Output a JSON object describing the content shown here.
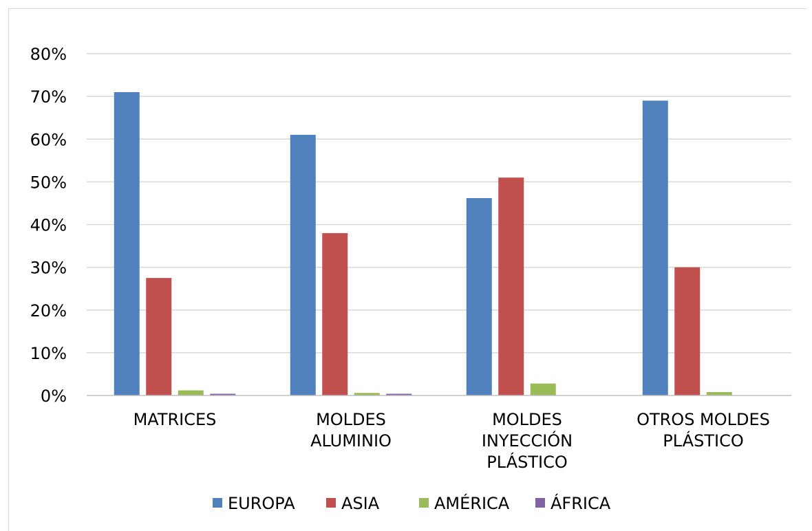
{
  "chart_data": {
    "type": "bar",
    "title": "",
    "xlabel": "",
    "ylabel": "",
    "ylim": [
      0,
      0.8
    ],
    "yticks": [
      0,
      0.1,
      0.2,
      0.3,
      0.4,
      0.5,
      0.6,
      0.7,
      0.8
    ],
    "ytick_labels": [
      "0%",
      "10%",
      "20%",
      "30%",
      "40%",
      "50%",
      "60%",
      "70%",
      "80%"
    ],
    "grid": true,
    "legend_position": "bottom",
    "categories": [
      [
        "MATRICES"
      ],
      [
        "MOLDES",
        "ALUMINIO"
      ],
      [
        "MOLDES",
        "INYECCIÓN",
        "PLÁSTICO"
      ],
      [
        "OTROS MOLDES",
        "PLÁSTICO"
      ]
    ],
    "series": [
      {
        "name": "EUROPA",
        "color": "#4f81bd",
        "values": [
          0.71,
          0.61,
          0.462,
          0.69
        ]
      },
      {
        "name": "ASIA",
        "color": "#c0504d",
        "values": [
          0.275,
          0.38,
          0.51,
          0.3
        ]
      },
      {
        "name": "AMÉRICA",
        "color": "#9bbb59",
        "values": [
          0.012,
          0.006,
          0.028,
          0.008
        ]
      },
      {
        "name": "ÁFRICA",
        "color": "#8064a2",
        "values": [
          0.004,
          0.004,
          0.0,
          0.0
        ]
      }
    ]
  }
}
